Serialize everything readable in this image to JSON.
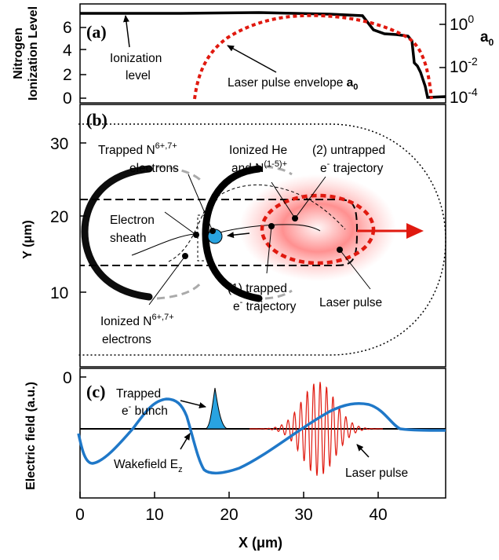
{
  "panels": {
    "a": {
      "label": "(a)",
      "ylabel_line1": "Nitrogen",
      "ylabel_line2": "Ionization Level",
      "left_ticks": [
        "6",
        "4",
        "2",
        "0"
      ],
      "right_ticks": [
        {
          "base": "10",
          "exp": "0"
        },
        {
          "base": "10",
          "exp": "-2"
        },
        {
          "base": "10",
          "exp": "-4"
        }
      ],
      "right_axis_label": "a",
      "right_axis_sub": "0",
      "ionization_label_line1": "Ionization",
      "ionization_label_line2": "level",
      "envelope_label": "Laser pulse envelope ",
      "envelope_label_a": "a",
      "envelope_label_sub": "0"
    },
    "b": {
      "label": "(b)",
      "ylabel": "Y (μm)",
      "y_ticks": [
        "30",
        "20",
        "10"
      ],
      "trapped_n_line1": "Trapped N",
      "trapped_n_sup": "6+,7+",
      "trapped_n_line2": "electrons",
      "ionized_he_line1": "Ionized He",
      "ionized_he_line2_a": "and N",
      "ionized_he_sup": "(1-5)+",
      "untrapped_line1": "(2) untrapped",
      "untrapped_e": "e",
      "untrapped_sup": "-",
      "untrapped_line2": " trajectory",
      "sheath_line1": "Electron",
      "sheath_line2": "sheath",
      "trapped_traj_line1": "(1) trapped",
      "trapped_traj_e": "e",
      "trapped_traj_sup": "-",
      "trapped_traj_line2": " trajectory",
      "laser_pulse": "Laser pulse",
      "ionized_n_line1": "Ionized N",
      "ionized_n_sup": "6+,7+",
      "ionized_n_line2": "electrons"
    },
    "c": {
      "label": "(c)",
      "ylabel": "Electric field  (a.u.)",
      "y_tick": "0",
      "bunch_line1": "Trapped",
      "bunch_e": "e",
      "bunch_sup": "-",
      "bunch_line2": " bunch",
      "wakefield": "Wakefield E",
      "wakefield_sub": "z",
      "laser_pulse": "Laser pulse"
    }
  },
  "x_axis": {
    "label": "X (μm)",
    "ticks": [
      "0",
      "10",
      "20",
      "30",
      "40"
    ]
  },
  "colors": {
    "wake": "#1f78c8",
    "bunch": "#29a3e0",
    "laser": "#e0190f",
    "envelope": "#e0190f",
    "glow": "#ff3030"
  }
}
